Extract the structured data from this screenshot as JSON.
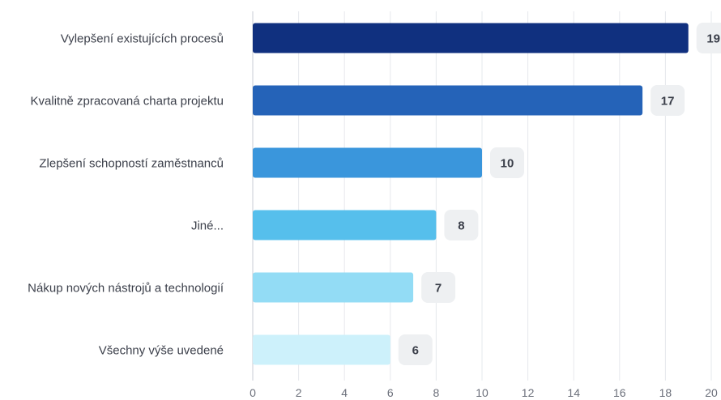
{
  "chart_data": {
    "type": "bar",
    "orientation": "horizontal",
    "categories": [
      "Vylepšení existujících procesů",
      "Kvalitně zpracovaná charta projektu",
      "Zlepšení schopností zaměstnanců",
      "Jiné...",
      "Nákup nových nástrojů a technologií",
      "Všechny výše uvedené"
    ],
    "values": [
      19,
      17,
      10,
      8,
      7,
      6
    ],
    "colors": [
      "#10307f",
      "#2563b8",
      "#3a96dc",
      "#56bfec",
      "#93dcf5",
      "#cdf1fb"
    ],
    "xlim": [
      0,
      20
    ],
    "xticks": [
      0,
      2,
      4,
      6,
      8,
      10,
      12,
      14,
      16,
      18,
      20
    ],
    "grid": true,
    "legend": "none"
  }
}
